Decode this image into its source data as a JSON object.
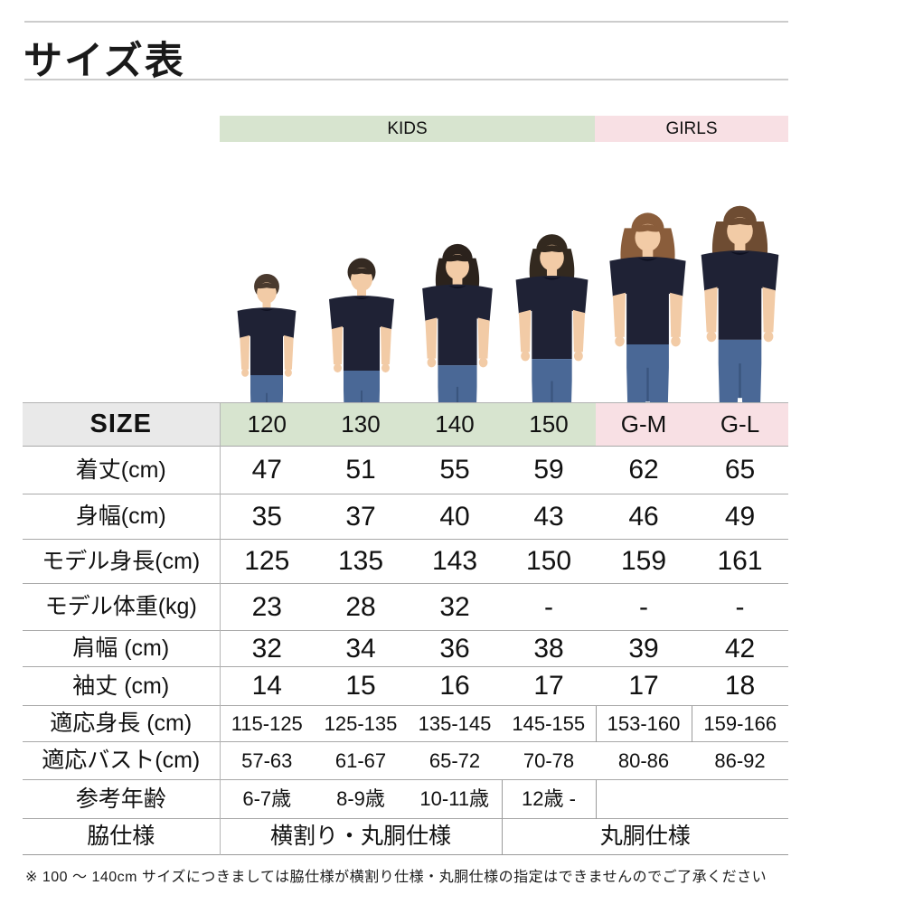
{
  "page": {
    "title": "サイズ表",
    "footnote": "※ 100 ～ 140cm サイズにつきましては脇仕様が横割り仕様・丸胴仕様の指定はできませんのでご了承ください"
  },
  "groups": {
    "kids": "KIDS",
    "girls": "GIRLS"
  },
  "colors": {
    "kids_bg": "#d7e4cf",
    "girls_bg": "#f8e0e4",
    "size_cell_bg": "#e9e9e9",
    "tshirt_navy": "#1f2235",
    "jeans_blue": "#4a6896",
    "skin": "#f2cba6"
  },
  "models": [
    {
      "size": "120",
      "group": "KIDS",
      "kind": "boy",
      "hair": "#4a3a2e"
    },
    {
      "size": "130",
      "group": "KIDS",
      "kind": "boy",
      "hair": "#352a22"
    },
    {
      "size": "140",
      "group": "KIDS",
      "kind": "girl",
      "hair": "#2b221c"
    },
    {
      "size": "150",
      "group": "KIDS",
      "kind": "girl",
      "hair": "#33291f"
    },
    {
      "size": "G-M",
      "group": "GIRLS",
      "kind": "woman",
      "hair": "#8a5d3b"
    },
    {
      "size": "G-L",
      "group": "GIRLS",
      "kind": "woman",
      "hair": "#6e4c32"
    }
  ],
  "size_table": {
    "header_label": "SIZE",
    "columns": [
      "120",
      "130",
      "140",
      "150",
      "G-M",
      "G-L"
    ],
    "column_groups": [
      "kids",
      "kids",
      "kids",
      "kids",
      "girls",
      "girls"
    ],
    "rows": [
      {
        "label": "着丈(cm)",
        "values": [
          "47",
          "51",
          "55",
          "59",
          "62",
          "65"
        ],
        "text": "large"
      },
      {
        "label": "身幅(cm)",
        "values": [
          "35",
          "37",
          "40",
          "43",
          "46",
          "49"
        ],
        "text": "large"
      },
      {
        "label": "モデル身長(cm)",
        "values": [
          "125",
          "135",
          "143",
          "150",
          "159",
          "161"
        ],
        "text": "large"
      },
      {
        "label": "モデル体重(kg)",
        "values": [
          "23",
          "28",
          "32",
          "-",
          "-",
          "-"
        ],
        "text": "large"
      },
      {
        "label": "肩幅 (cm)",
        "values": [
          "32",
          "34",
          "36",
          "38",
          "39",
          "42"
        ],
        "text": "large"
      },
      {
        "label": "袖丈 (cm)",
        "values": [
          "14",
          "15",
          "16",
          "17",
          "17",
          "18"
        ],
        "text": "large"
      },
      {
        "label": "適応身長 (cm)",
        "values": [
          "115-125",
          "125-135",
          "135-145",
          "145-155",
          "153-160",
          "159-166"
        ],
        "text": "small",
        "dividers": [
          4,
          5
        ]
      },
      {
        "label": "適応バスト(cm)",
        "values": [
          "57-63",
          "61-67",
          "65-72",
          "70-78",
          "80-86",
          "86-92"
        ],
        "text": "small"
      },
      {
        "label": "参考年齢",
        "values": [
          "6-7歳",
          "8-9歳",
          "10-11歳",
          "12歳 -",
          "",
          ""
        ],
        "text": "small",
        "dividers": [
          3,
          4
        ]
      },
      {
        "label": "脇仕様",
        "text": "side",
        "spans": [
          {
            "text": "横割り・丸胴仕様",
            "cols": 3
          },
          {
            "text": "丸胴仕様",
            "cols": 3,
            "divider": true
          }
        ]
      }
    ]
  }
}
